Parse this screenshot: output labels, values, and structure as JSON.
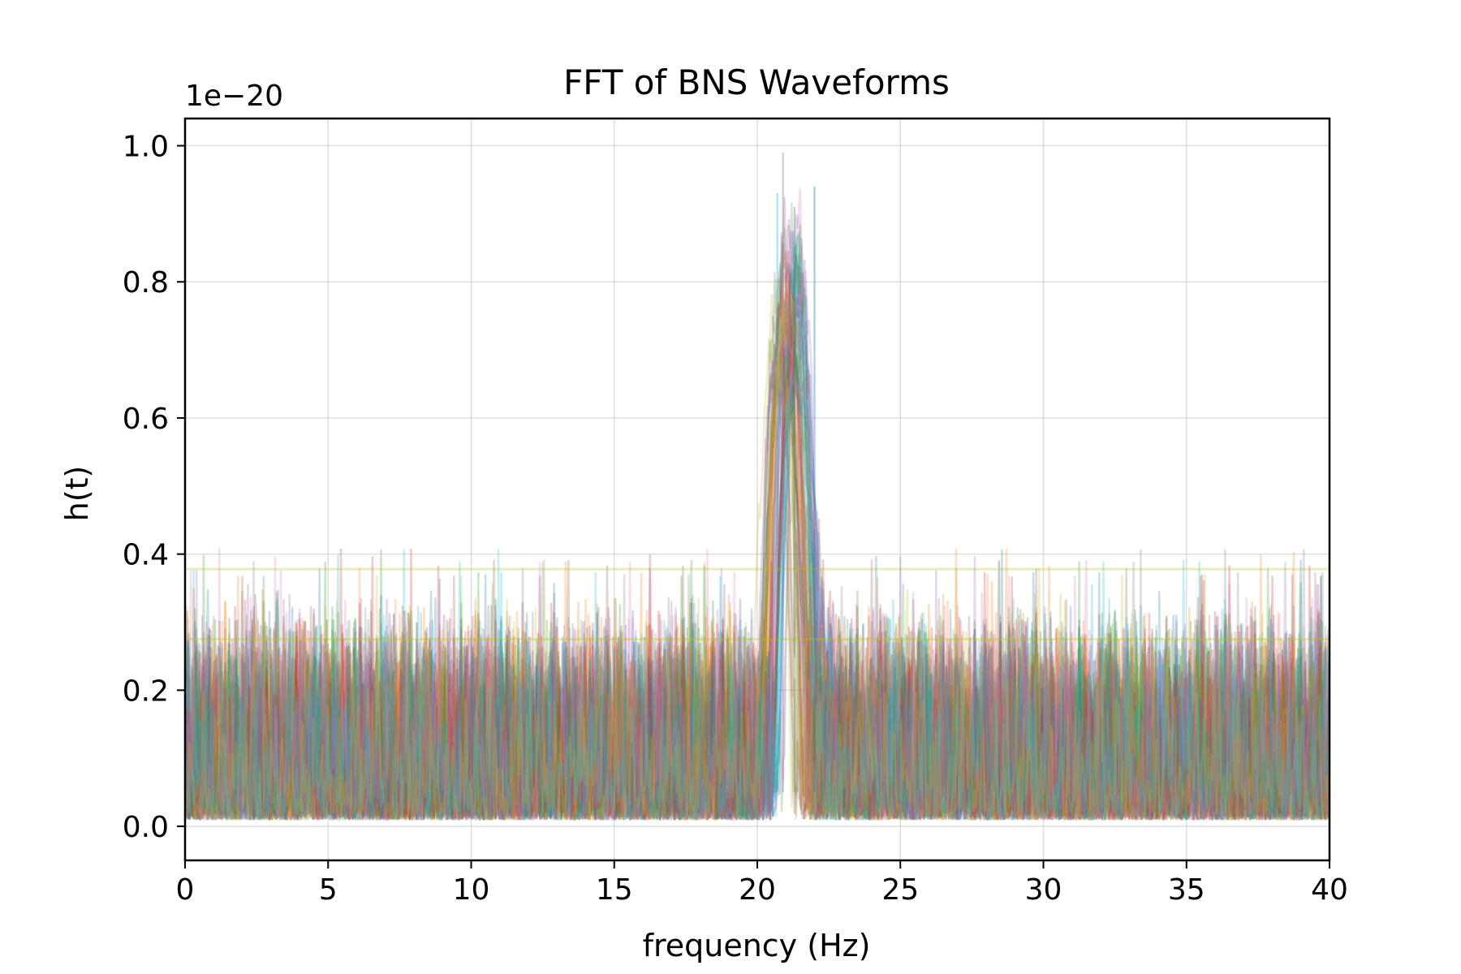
{
  "chart_data": {
    "type": "line",
    "title": "FFT of BNS Waveforms",
    "xlabel": "frequency (Hz)",
    "ylabel": "h(t)",
    "y_offset_label": "1e−20",
    "xlim": [
      0,
      40
    ],
    "ylim": [
      -0.05,
      1.04
    ],
    "x_ticks": [
      "0",
      "5",
      "10",
      "15",
      "20",
      "25",
      "30",
      "35",
      "40"
    ],
    "y_ticks": [
      "0.0",
      "0.2",
      "0.4",
      "0.6",
      "0.8",
      "1.0"
    ],
    "grid": true,
    "legend": "none",
    "series_description": {
      "count_approx": 60,
      "noise_band": [
        0.01,
        0.32
      ],
      "occasional_spikes_max": 0.43,
      "peak_frequency_range_hz": [
        19.7,
        23.8
      ],
      "peak_max": 0.99,
      "alpha": 0.25
    },
    "reference_lines": [
      {
        "y": 0.378,
        "color": "#bcbd22"
      },
      {
        "y": 0.275,
        "color": "#bcbd22"
      }
    ],
    "palette": [
      "#1f77b4",
      "#ff7f0e",
      "#2ca02c",
      "#d62728",
      "#9467bd",
      "#8c564b",
      "#e377c2",
      "#7f7f7f",
      "#bcbd22",
      "#17becf"
    ]
  }
}
